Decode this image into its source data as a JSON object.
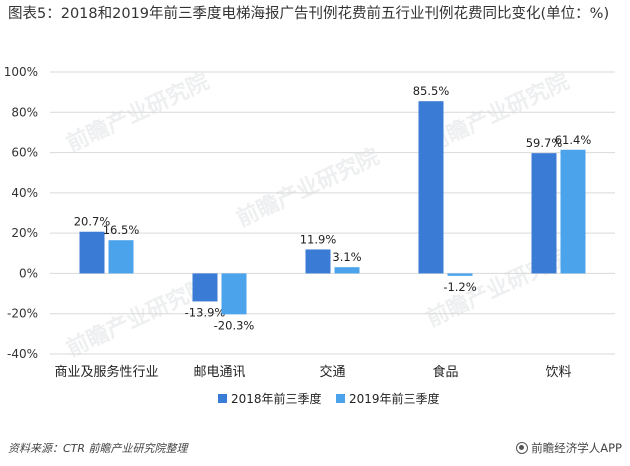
{
  "title": "图表5：2018和2019年前三季度电梯海报广告刊例花费前五行业刊例花费同比变化(单位：%)",
  "watermark": "前瞻产业研究院",
  "source": "资料来源：CTR 前瞻产业研究院整理",
  "brand": "前瞻经济学人APP",
  "colors": {
    "series2018": "#3a7bd5",
    "series2019": "#4ba3ec",
    "grid": "#d9d9d9"
  },
  "chart_data": {
    "type": "bar",
    "categories": [
      "商业及服务性行业",
      "邮电通讯",
      "交通",
      "食品",
      "饮料"
    ],
    "series": [
      {
        "name": "2018年前三季度",
        "values": [
          20.7,
          -13.9,
          11.9,
          85.5,
          59.7
        ],
        "labels": [
          "20.7%",
          "-13.9%",
          "11.9%",
          "85.5%",
          "59.7%"
        ]
      },
      {
        "name": "2019年前三季度",
        "values": [
          16.5,
          -20.3,
          3.1,
          -1.2,
          61.4
        ],
        "labels": [
          "16.5%",
          "-20.3%",
          "3.1%",
          "-1.2%",
          "61.4%"
        ]
      }
    ],
    "ylim": [
      -40,
      100
    ],
    "yticks": [
      -40,
      -20,
      0,
      20,
      40,
      60,
      80,
      100
    ],
    "ytick_labels": [
      "-40%",
      "-20%",
      "0%",
      "20%",
      "40%",
      "60%",
      "80%",
      "100%"
    ],
    "grid": true,
    "legend_position": "bottom"
  }
}
